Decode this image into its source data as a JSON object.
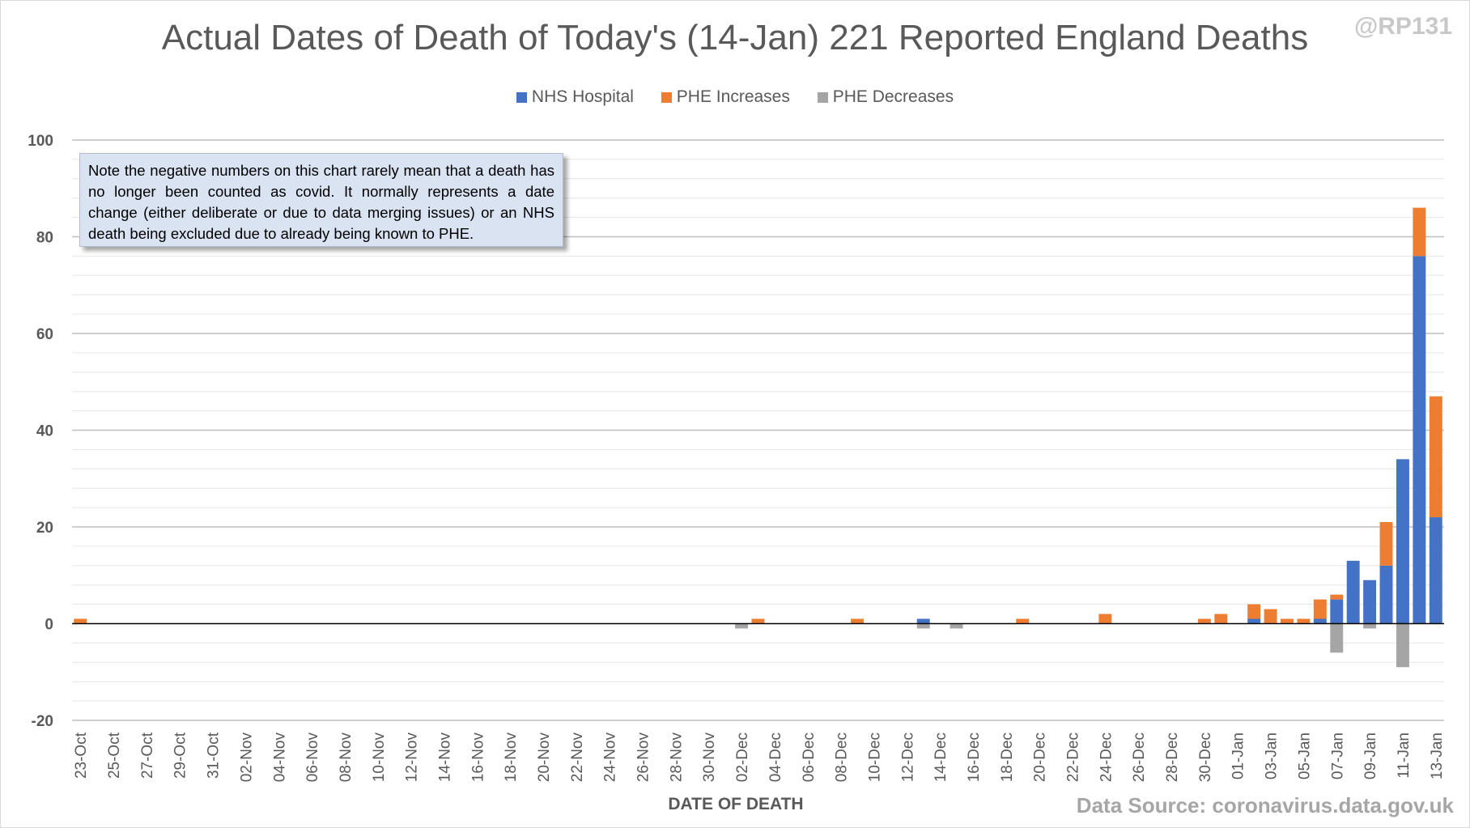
{
  "header": {
    "title": "Actual Dates of Death of Today's (14-Jan) 221 Reported England Deaths",
    "handle": "@RP131"
  },
  "note": "Note the negative numbers on this chart rarely mean that a death has no longer been counted as covid. It normally represents a date change (either deliberate or due to data merging issues) or an NHS death being excluded due to already being known to PHE.",
  "source": "Data Source: coronavirus.data.gov.uk",
  "colors": {
    "nhs": "#4472c4",
    "phe_inc": "#ed7d31",
    "phe_dec": "#a5a5a5"
  },
  "chart_data": {
    "type": "bar",
    "stacked": true,
    "title": "Actual Dates of Death of Today's (14-Jan) 221 Reported England Deaths",
    "xlabel": "DATE OF DEATH",
    "ylabel": "",
    "ylim": [
      -20,
      100
    ],
    "yticks": [
      -20,
      0,
      20,
      40,
      60,
      80,
      100
    ],
    "grid": true,
    "legend_position": "top",
    "categories": [
      "23-Oct",
      "24-Oct",
      "25-Oct",
      "26-Oct",
      "27-Oct",
      "28-Oct",
      "29-Oct",
      "30-Oct",
      "31-Oct",
      "01-Nov",
      "02-Nov",
      "03-Nov",
      "04-Nov",
      "05-Nov",
      "06-Nov",
      "07-Nov",
      "08-Nov",
      "09-Nov",
      "10-Nov",
      "11-Nov",
      "12-Nov",
      "13-Nov",
      "14-Nov",
      "15-Nov",
      "16-Nov",
      "17-Nov",
      "18-Nov",
      "19-Nov",
      "20-Nov",
      "21-Nov",
      "22-Nov",
      "23-Nov",
      "24-Nov",
      "25-Nov",
      "26-Nov",
      "27-Nov",
      "28-Nov",
      "29-Nov",
      "30-Nov",
      "01-Dec",
      "02-Dec",
      "03-Dec",
      "04-Dec",
      "05-Dec",
      "06-Dec",
      "07-Dec",
      "08-Dec",
      "09-Dec",
      "10-Dec",
      "11-Dec",
      "12-Dec",
      "13-Dec",
      "14-Dec",
      "15-Dec",
      "16-Dec",
      "17-Dec",
      "18-Dec",
      "19-Dec",
      "20-Dec",
      "21-Dec",
      "22-Dec",
      "23-Dec",
      "24-Dec",
      "25-Dec",
      "26-Dec",
      "27-Dec",
      "28-Dec",
      "29-Dec",
      "30-Dec",
      "31-Dec",
      "01-Jan",
      "02-Jan",
      "03-Jan",
      "04-Jan",
      "05-Jan",
      "06-Jan",
      "07-Jan",
      "08-Jan",
      "09-Jan",
      "10-Jan",
      "11-Jan",
      "12-Jan",
      "13-Jan"
    ],
    "tick_labels": [
      "23-Oct",
      "25-Oct",
      "27-Oct",
      "29-Oct",
      "31-Oct",
      "02-Nov",
      "04-Nov",
      "06-Nov",
      "08-Nov",
      "10-Nov",
      "12-Nov",
      "14-Nov",
      "16-Nov",
      "18-Nov",
      "20-Nov",
      "22-Nov",
      "24-Nov",
      "26-Nov",
      "28-Nov",
      "30-Nov",
      "02-Dec",
      "04-Dec",
      "06-Dec",
      "08-Dec",
      "10-Dec",
      "12-Dec",
      "14-Dec",
      "16-Dec",
      "18-Dec",
      "20-Dec",
      "22-Dec",
      "24-Dec",
      "26-Dec",
      "28-Dec",
      "30-Dec",
      "01-Jan",
      "03-Jan",
      "05-Jan",
      "07-Jan",
      "09-Jan",
      "11-Jan",
      "13-Jan"
    ],
    "series": [
      {
        "name": "NHS Hospital",
        "color": "#4472c4",
        "values": [
          0,
          0,
          0,
          0,
          0,
          0,
          0,
          0,
          0,
          0,
          0,
          0,
          0,
          0,
          0,
          0,
          0,
          0,
          0,
          0,
          0,
          0,
          0,
          0,
          0,
          0,
          0,
          0,
          0,
          0,
          0,
          0,
          0,
          0,
          0,
          0,
          0,
          0,
          0,
          0,
          0,
          0,
          0,
          0,
          0,
          0,
          0,
          0,
          0,
          0,
          0,
          1,
          0,
          0,
          0,
          0,
          0,
          0,
          0,
          0,
          0,
          0,
          0,
          0,
          0,
          0,
          0,
          0,
          0,
          0,
          0,
          1,
          0,
          0,
          0,
          1,
          5,
          13,
          9,
          12,
          34,
          76,
          22
        ]
      },
      {
        "name": "PHE Increases",
        "color": "#ed7d31",
        "values": [
          1,
          0,
          0,
          0,
          0,
          0,
          0,
          0,
          0,
          0,
          0,
          0,
          0,
          0,
          0,
          0,
          0,
          0,
          0,
          0,
          0,
          0,
          0,
          0,
          0,
          0,
          0,
          0,
          0,
          0,
          0,
          0,
          0,
          0,
          0,
          0,
          0,
          0,
          0,
          0,
          0,
          1,
          0,
          0,
          0,
          0,
          0,
          1,
          0,
          0,
          0,
          0,
          0,
          0,
          0,
          0,
          0,
          1,
          0,
          0,
          0,
          0,
          2,
          0,
          0,
          0,
          0,
          0,
          1,
          2,
          0,
          3,
          3,
          1,
          1,
          4,
          1,
          0,
          0,
          9,
          0,
          10,
          25
        ]
      },
      {
        "name": "PHE Decreases",
        "color": "#a5a5a5",
        "values": [
          0,
          0,
          0,
          0,
          0,
          0,
          0,
          0,
          0,
          0,
          0,
          0,
          0,
          0,
          0,
          0,
          0,
          0,
          0,
          0,
          0,
          0,
          0,
          0,
          0,
          0,
          0,
          0,
          0,
          0,
          0,
          0,
          0,
          0,
          0,
          0,
          0,
          0,
          0,
          0,
          -1,
          0,
          0,
          0,
          0,
          0,
          0,
          0,
          0,
          0,
          0,
          -1,
          0,
          -1,
          0,
          0,
          0,
          0,
          0,
          0,
          0,
          0,
          0,
          0,
          0,
          0,
          0,
          0,
          0,
          0,
          0,
          0,
          0,
          0,
          0,
          0,
          -6,
          0,
          -1,
          0,
          -9,
          0,
          0
        ]
      }
    ]
  }
}
